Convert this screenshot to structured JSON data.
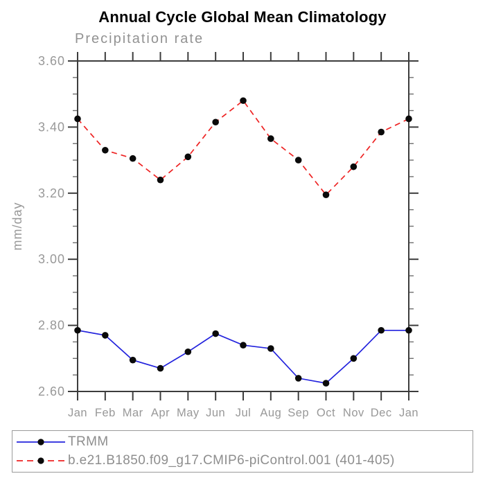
{
  "chart_data": {
    "type": "line",
    "title": "Annual Cycle Global Mean Climatology",
    "subtitle": "Precipitation rate",
    "ylabel": "mm/day",
    "categories": [
      "Jan",
      "Feb",
      "Mar",
      "Apr",
      "May",
      "Jun",
      "Jul",
      "Aug",
      "Sep",
      "Oct",
      "Nov",
      "Dec",
      "Jan"
    ],
    "ylim": [
      2.6,
      3.6
    ],
    "ytick_major_interval": 0.2,
    "ytick_minor_per_major": 3,
    "grid": false,
    "legend_position": "bottom-left-box",
    "axis_color": "#3c3c3c",
    "minor_tick_color": "#6e6e6e",
    "label_color": "#989898",
    "series": [
      {
        "name": "TRMM",
        "line_color": "#2222dd",
        "line_style": "solid",
        "marker": "filled-circle",
        "marker_color": "#0a0a0a",
        "values": [
          2.785,
          2.77,
          2.695,
          2.67,
          2.72,
          2.775,
          2.74,
          2.73,
          2.64,
          2.625,
          2.7,
          2.785,
          2.785
        ]
      },
      {
        "name": "b.e21.B1850.f09_g17.CMIP6-piControl.001 (401-405)",
        "line_color": "#ee2222",
        "line_style": "dashed",
        "marker": "filled-circle",
        "marker_color": "#0a0a0a",
        "values": [
          3.425,
          3.33,
          3.305,
          3.24,
          3.31,
          3.415,
          3.48,
          3.365,
          3.3,
          3.195,
          3.28,
          3.385,
          3.425
        ]
      }
    ]
  }
}
